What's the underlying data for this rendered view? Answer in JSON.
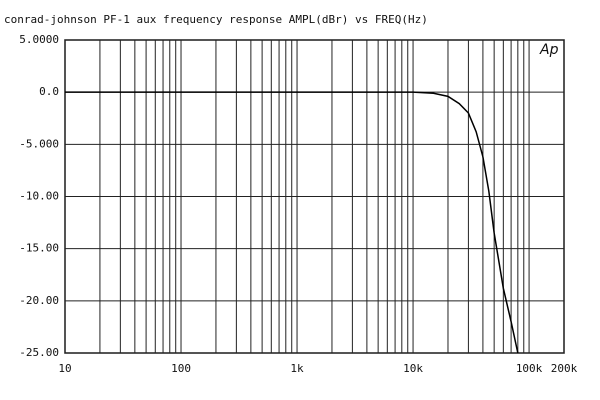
{
  "chart_data": {
    "type": "line",
    "title": "conrad-johnson PF-1 aux frequency response   AMPL(dBr) vs FREQ(Hz)",
    "annotation": "Ap",
    "x": [
      10,
      20,
      50,
      100,
      1000,
      5000,
      10000,
      15000,
      20000,
      25000,
      30000,
      35000,
      40000,
      45000,
      50000,
      60000,
      70000,
      80000
    ],
    "series": [
      {
        "name": "AMPL(dBr)",
        "color": "#000000",
        "values": [
          0,
          0,
          0,
          0,
          0,
          0,
          0,
          -0.1,
          -0.4,
          -1.1,
          -2,
          -3.8,
          -6.2,
          -9.5,
          -13.5,
          -18.8,
          -22,
          -25
        ]
      }
    ],
    "xlog": true,
    "xlim": [
      10,
      200000
    ],
    "xticks": [
      10,
      100,
      {
        "value": 1000,
        "label": "1k"
      },
      {
        "value": 10000,
        "label": "10k"
      },
      {
        "value": 100000,
        "label": "100k"
      },
      {
        "value": 200000,
        "label": "200k"
      }
    ],
    "xminorticks": [
      20,
      30,
      40,
      50,
      60,
      70,
      80,
      90,
      200,
      300,
      400,
      500,
      600,
      700,
      800,
      900,
      2000,
      3000,
      4000,
      5000,
      6000,
      7000,
      8000,
      9000,
      20000,
      30000,
      40000,
      50000,
      60000,
      70000,
      80000,
      90000
    ],
    "ylim": [
      -25,
      5
    ],
    "yticks": [
      {
        "value": 5,
        "label": "5.0000"
      },
      {
        "value": 0,
        "label": "0.0"
      },
      {
        "value": -5,
        "label": "-5.000"
      },
      {
        "value": -10,
        "label": "-10.00"
      },
      {
        "value": -15,
        "label": "-15.00"
      },
      {
        "value": -20,
        "label": "-20.00"
      },
      {
        "value": -25,
        "label": "-25.00"
      }
    ],
    "grid": true
  }
}
